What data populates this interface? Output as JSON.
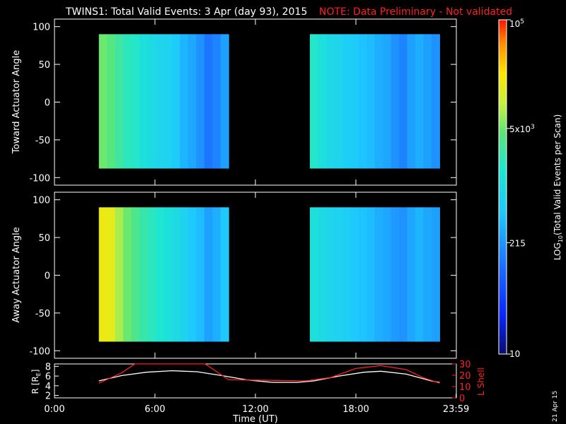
{
  "header": {
    "title": "TWINS1: Total Valid Events:  3 Apr (day  93), 2015",
    "note": "NOTE: Data Preliminary - Not validated",
    "note_color": "#ff2020"
  },
  "side_stamp": "21 Apr 15",
  "chart_data": [
    {
      "type": "heatmap",
      "panel": "toward",
      "ylabel": "Toward Actuator Angle",
      "ylim": [
        -110,
        110
      ],
      "yticks": [
        100,
        50,
        0,
        -50,
        -100
      ],
      "xlim": [
        0,
        24
      ],
      "angle_range": [
        -88,
        90
      ],
      "segments": [
        [
          2.65,
          10.4
        ],
        [
          15.25,
          23.0
        ]
      ],
      "log_counts": [
        3.7,
        3.6,
        3.45,
        3.3,
        3.25,
        3.1,
        3.0,
        2.9,
        2.85,
        2.75,
        2.55,
        2.45,
        2.3,
        2.1,
        2.2,
        2.4,
        3.25,
        3.1,
        2.95,
        2.9,
        2.8,
        2.75,
        2.65,
        2.6,
        2.5,
        2.45,
        2.3,
        2.2,
        2.4,
        2.5,
        2.4,
        2.3
      ]
    },
    {
      "type": "heatmap",
      "panel": "away",
      "ylabel": "Away Actuator Angle",
      "ylim": [
        -110,
        110
      ],
      "yticks": [
        100,
        50,
        0,
        -50,
        -100
      ],
      "xlim": [
        0,
        24
      ],
      "angle_range": [
        -88,
        90
      ],
      "segments": [
        [
          2.65,
          10.4
        ],
        [
          15.25,
          23.0
        ]
      ],
      "log_counts": [
        4.25,
        4.2,
        3.9,
        3.7,
        3.55,
        3.4,
        3.3,
        3.2,
        3.1,
        3.0,
        2.85,
        2.7,
        2.6,
        2.4,
        2.5,
        2.7,
        3.1,
        3.0,
        2.9,
        2.85,
        2.8,
        2.7,
        2.65,
        2.6,
        2.5,
        2.45,
        2.35,
        2.3,
        2.45,
        2.55,
        2.45,
        2.4
      ]
    },
    {
      "type": "line",
      "panel": "orbit",
      "xlabel": "Time (UT)",
      "xlim": [
        0,
        24
      ],
      "xticks": [
        {
          "value": 0,
          "label": "0:00"
        },
        {
          "value": 6,
          "label": "6:00"
        },
        {
          "value": 12,
          "label": "12:00"
        },
        {
          "value": 18,
          "label": "18:00"
        },
        {
          "value": 23.983,
          "label": "23:59"
        }
      ],
      "y_left": {
        "label": "R [R",
        "label_sub": "E",
        "label_end": "]",
        "lim": [
          1.5,
          8.5
        ],
        "ticks": [
          2,
          4,
          6,
          8
        ]
      },
      "y_right": {
        "label": "L Shell",
        "lim": [
          0,
          30
        ],
        "ticks": [
          0,
          10,
          20,
          30
        ],
        "color": "#ff2020"
      },
      "series": [
        {
          "axis": "left",
          "color": "#ffffff",
          "x": [
            2.65,
            4.0,
            5.5,
            7.0,
            8.5,
            10.0,
            11.5,
            13.0,
            14.5,
            15.5,
            17.0,
            18.5,
            19.5,
            21.0,
            22.5,
            23.0
          ],
          "y": [
            5.0,
            6.1,
            6.8,
            7.1,
            6.9,
            6.1,
            5.2,
            4.7,
            4.7,
            5.0,
            6.0,
            6.8,
            7.0,
            6.4,
            5.0,
            4.7
          ]
        },
        {
          "axis": "right",
          "color": "#ff2020",
          "x": [
            2.65,
            4.0,
            4.8,
            9.0,
            10.4,
            13.0,
            15.0,
            16.5,
            18.0,
            19.5,
            21.0,
            22.0,
            23.0
          ],
          "y": [
            13.0,
            22.0,
            30.0,
            30.0,
            16.0,
            15.5,
            15.0,
            18.0,
            26.0,
            28.5,
            25.0,
            18.0,
            13.0
          ]
        }
      ]
    }
  ],
  "colorbar": {
    "label_main": "LOG",
    "label_sub": "10",
    "label_rest": "(Total Valid  Events per Scan)",
    "log_range": [
      1,
      5
    ],
    "ticks": [
      {
        "log": 5,
        "base": "10",
        "exp": "5"
      },
      {
        "log": 3.699,
        "base": "5x10",
        "exp": "3"
      },
      {
        "log": 2.332,
        "base": "215",
        "exp": ""
      },
      {
        "log": 1,
        "base": "10",
        "exp": ""
      }
    ]
  }
}
